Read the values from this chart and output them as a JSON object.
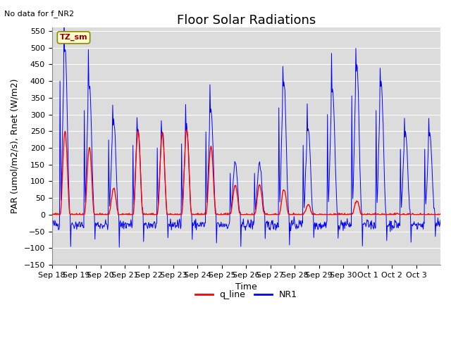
{
  "title": "Floor Solar Radiations",
  "subtitle": "No data for f_NR2",
  "xlabel": "Time",
  "ylabel": "PAR (umol/m2/s), Rnet (W/m2)",
  "ylim": [
    -150,
    560
  ],
  "yticks": [
    -150,
    -100,
    -50,
    0,
    50,
    100,
    150,
    200,
    250,
    300,
    350,
    400,
    450,
    500,
    550
  ],
  "xtick_labels": [
    "Sep 18",
    "Sep 19",
    "Sep 20",
    "Sep 21",
    "Sep 22",
    "Sep 23",
    "Sep 24",
    "Sep 25",
    "Sep 26",
    "Sep 27",
    "Sep 28",
    "Sep 29",
    "Sep 30",
    "Oct 1",
    "Oct 2",
    "Oct 3"
  ],
  "legend_entries": [
    "q_line",
    "NR1"
  ],
  "legend_colors": [
    "#FF0000",
    "#0000FF"
  ],
  "bg_color": "#DCDCDC",
  "grid_color": "#FFFFFF",
  "annotation_text": "TZ_sm",
  "annotation_bg": "#FFFACD",
  "annotation_border": "#8B8B00",
  "q_line_color": "#FF0000",
  "NR1_color": "#0000FF",
  "title_fontsize": 13,
  "label_fontsize": 9,
  "tick_fontsize": 8,
  "day_peaks_q": [
    250,
    200,
    80,
    250,
    245,
    255,
    205,
    90,
    90,
    75,
    30,
    0,
    40,
    0,
    0,
    0
  ],
  "day_peaks_NR1": [
    500,
    390,
    280,
    260,
    250,
    265,
    310,
    155,
    155,
    400,
    260,
    375,
    445,
    390,
    245,
    245
  ],
  "night_base": -30,
  "night_noise": 8,
  "figsize": [
    6.4,
    4.8
  ],
  "dpi": 100
}
